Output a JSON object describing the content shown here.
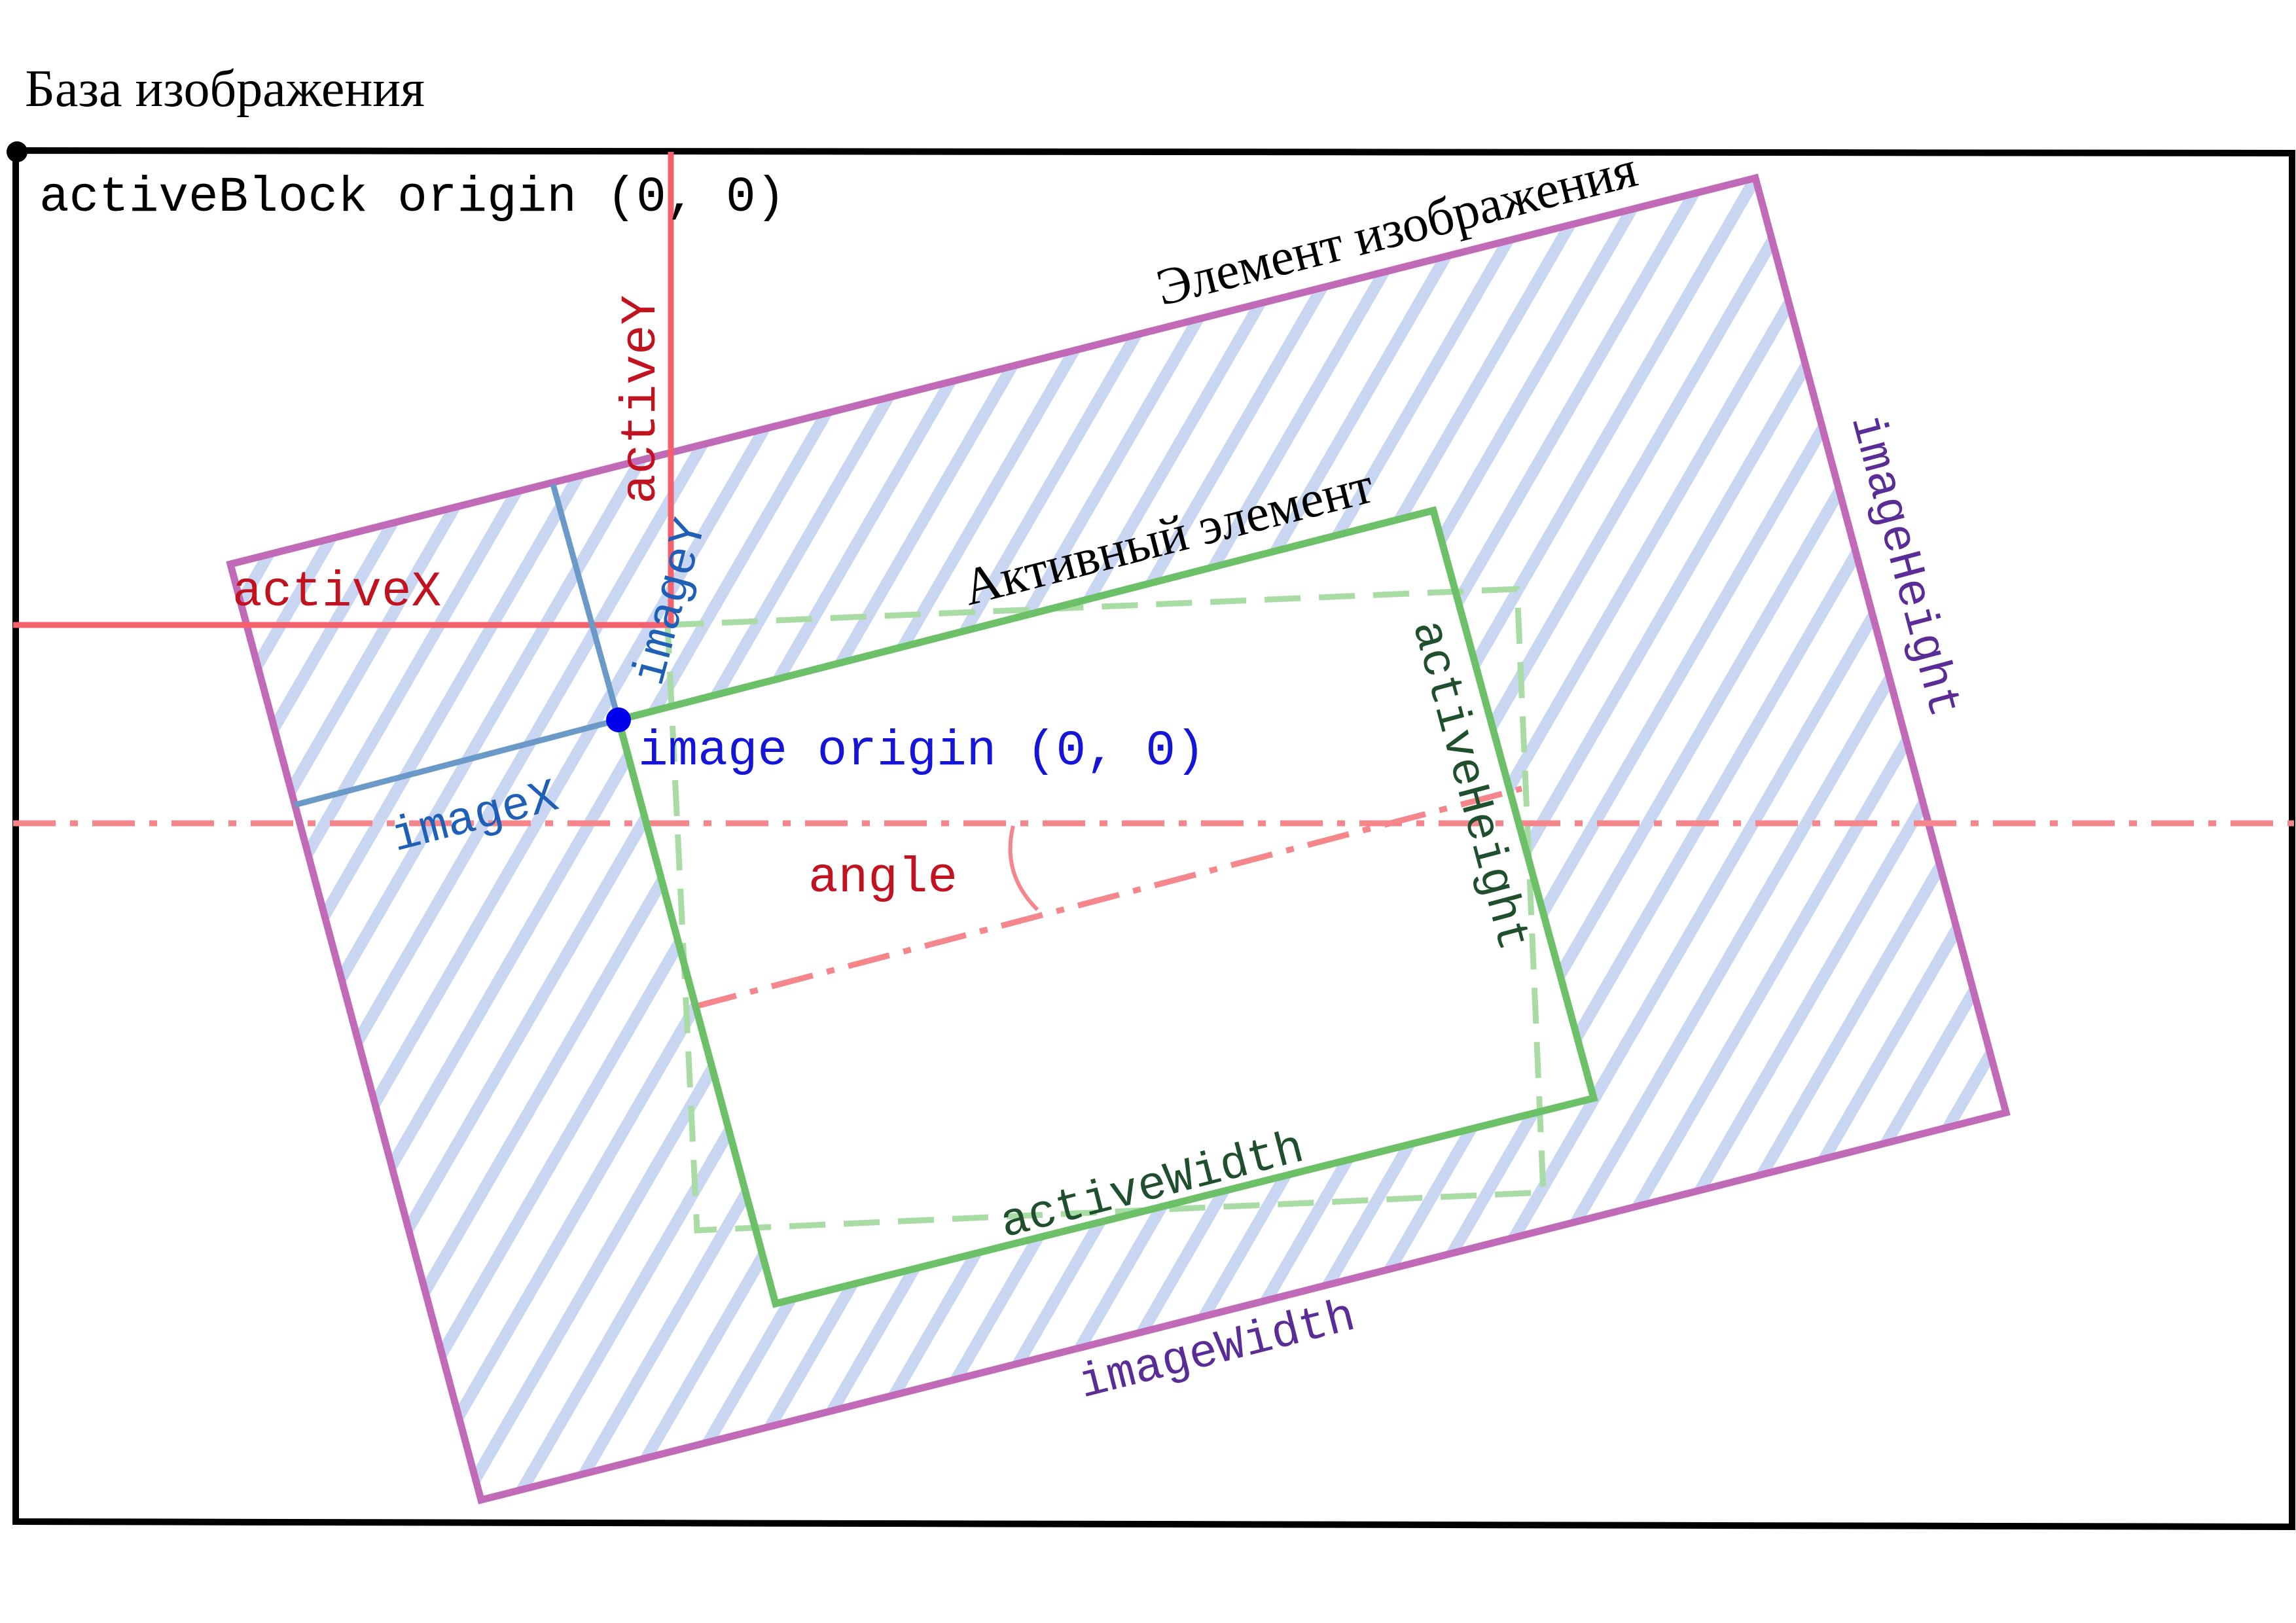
{
  "title": "База изображения",
  "labels": {
    "active_block_origin": "activeBlock origin (0, 0)",
    "image_element": "Элемент изображения",
    "active_element": "Активный элемент",
    "image_origin": "image origin (0, 0)",
    "active_x": "activeX",
    "active_y": "activeY",
    "image_x": "imageX",
    "image_y": "imageY",
    "angle": "angle",
    "active_height": "activeHeight",
    "active_width": "activeWidth",
    "image_height": "imageHeight",
    "image_width": "imageWidth"
  },
  "colors": {
    "frame": "#000000",
    "image_element": "#c06ab8",
    "image_hatch": "#c9d6f2",
    "active_element": "#6cc168",
    "active_element_dashed": "#a9dba5",
    "active_offset": "#f4606c",
    "axis_dash_dot": "#f4868c",
    "image_offset": "#6b9ac8",
    "image_origin": "#0000ee",
    "text_red": "#c1131f",
    "text_blue": "#1f5fb5",
    "text_origin_blue": "#1515d8",
    "text_purple": "#5a2c95",
    "text_dark_green": "#1f4f2c"
  }
}
